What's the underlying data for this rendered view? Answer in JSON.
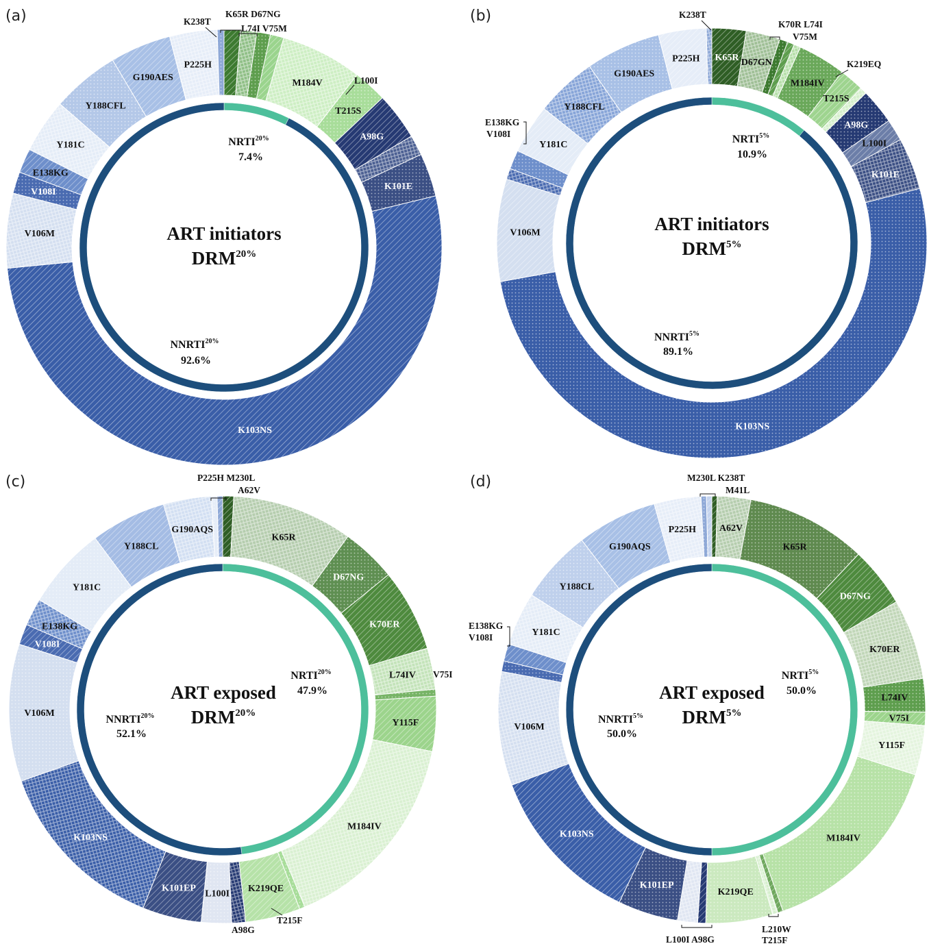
{
  "chart_data": [
    {
      "type": "donut",
      "panel": "(a)",
      "title_line1": "ART initiators",
      "title_line2": "DRM",
      "title_sup": "20%",
      "inner": [
        {
          "name": "NRTI",
          "sup": "20%",
          "value_label": "7.4%",
          "value": 7.4
        },
        {
          "name": "NNRTI",
          "sup": "20%",
          "value_label": "92.6%",
          "value": 92.6
        }
      ],
      "outer": [
        {
          "label": "K65R",
          "value": 1.2,
          "color": "#3d7a30",
          "label_shown": false
        },
        {
          "label": "D67NG",
          "value": 1.2,
          "color": "#8fbf86",
          "label_shown": false
        },
        {
          "label": "L74I",
          "value": 1.0,
          "color": "#5e9e4e",
          "label_shown": false
        },
        {
          "label": "V75M",
          "value": 1.0,
          "color": "#9ad48d",
          "label_shown": false
        },
        {
          "label": "M184V",
          "value": 6.0,
          "color": "#cdeec3",
          "label_shown": true
        },
        {
          "label": "T215S",
          "value": 2.5,
          "color": "#a8dd9a",
          "label_shown": true
        },
        {
          "label": "A98G",
          "value": 3.5,
          "color": "#263a73",
          "label_shown": true,
          "text_color": "#ffffff"
        },
        {
          "label": "L100I",
          "value": 1.5,
          "color": "#4b5f92",
          "label_shown": false
        },
        {
          "label": "K101E",
          "value": 3.2,
          "color": "#3b4f84",
          "label_shown": true,
          "text_color": "#ffffff"
        },
        {
          "label": "K103NS",
          "value": 52.0,
          "color": "#3a5ea8",
          "label_shown": true,
          "text_color": "#ffffff"
        },
        {
          "label": "V106M",
          "value": 5.5,
          "color": "#d4dff0",
          "label_shown": true
        },
        {
          "label": "V108I",
          "value": 1.6,
          "color": "#4a6bb1",
          "label_shown": true,
          "text_color": "#ffffff"
        },
        {
          "label": "E138KG",
          "value": 1.8,
          "color": "#6e8fcb",
          "label_shown": true
        },
        {
          "label": "Y181C",
          "value": 4.0,
          "color": "#e4ecf7",
          "label_shown": true
        },
        {
          "label": "Y188CFL",
          "value": 5.0,
          "color": "#b4c8e8",
          "label_shown": true
        },
        {
          "label": "G190AES",
          "value": 4.5,
          "color": "#a8c0e6",
          "label_shown": true
        },
        {
          "label": "P225H",
          "value": 3.5,
          "color": "#e6edf8",
          "label_shown": true
        },
        {
          "label": "K238T",
          "value": 0.5,
          "color": "#8fa9d7",
          "label_shown": false
        }
      ],
      "external_labels": [
        "K238T",
        "K65R D67NG",
        "L74I V75M",
        "L100I"
      ]
    },
    {
      "type": "donut",
      "panel": "(b)",
      "title_line1": "ART initiators",
      "title_line2": "DRM",
      "title_sup": "5%",
      "inner": [
        {
          "name": "NRTI",
          "sup": "5%",
          "value_label": "10.9%",
          "value": 10.9
        },
        {
          "name": "NNRTI",
          "sup": "5%",
          "value_label": "89.1%",
          "value": 89.1
        }
      ],
      "outer": [
        {
          "label": "K65R",
          "value": 2.5,
          "color": "#2f5e25",
          "label_shown": true,
          "text_color": "#ffffff"
        },
        {
          "label": "D67GN",
          "value": 2.5,
          "color": "#9fbf96",
          "label_shown": true
        },
        {
          "label": "K70R",
          "value": 0.6,
          "color": "#3d7a30",
          "label_shown": false
        },
        {
          "label": "L74I",
          "value": 0.5,
          "color": "#5e9e4e",
          "label_shown": false
        },
        {
          "label": "V75M",
          "value": 0.5,
          "color": "#b6dfa9",
          "label_shown": false
        },
        {
          "label": "M184IV",
          "value": 3.5,
          "color": "#6aa85a",
          "label_shown": true
        },
        {
          "label": "T215S",
          "value": 1.8,
          "color": "#9ed48f",
          "label_shown": true
        },
        {
          "label": "K219EQ",
          "value": 0.5,
          "color": "#d4efcb",
          "label_shown": false
        },
        {
          "label": "A98G",
          "value": 2.6,
          "color": "#263a73",
          "label_shown": true,
          "text_color": "#ffffff"
        },
        {
          "label": "L100I",
          "value": 1.6,
          "color": "#6c7ea8",
          "label_shown": true
        },
        {
          "label": "K101E",
          "value": 3.8,
          "color": "#3b4f84",
          "label_shown": true,
          "text_color": "#ffffff"
        },
        {
          "label": "K103NS",
          "value": 50.0,
          "color": "#3a5ea8",
          "label_shown": true,
          "text_color": "#ffffff"
        },
        {
          "label": "V106M",
          "value": 7.5,
          "color": "#d4dff0",
          "label_shown": true
        },
        {
          "label": "V108I",
          "value": 0.8,
          "color": "#4a6bb1",
          "label_shown": false
        },
        {
          "label": "E138KG",
          "value": 1.4,
          "color": "#6e8fcb",
          "label_shown": false
        },
        {
          "label": "Y181C",
          "value": 3.6,
          "color": "#e4ecf7",
          "label_shown": true
        },
        {
          "label": "Y188CFL",
          "value": 4.5,
          "color": "#86a4d8",
          "label_shown": true
        },
        {
          "label": "G190AES",
          "value": 5.5,
          "color": "#a8c0e6",
          "label_shown": true
        },
        {
          "label": "P225H",
          "value": 3.5,
          "color": "#e6edf8",
          "label_shown": true
        },
        {
          "label": "K238T",
          "value": 0.4,
          "color": "#8fa9d7",
          "label_shown": false
        }
      ],
      "external_labels": [
        "K238T",
        "K70R L74I",
        "V75M",
        "K219EQ",
        "E138KG",
        "V108I"
      ]
    },
    {
      "type": "donut",
      "panel": "(c)",
      "title_line1": "ART exposed",
      "title_line2": "DRM",
      "title_sup": "20%",
      "inner": [
        {
          "name": "NRTI",
          "sup": "20%",
          "value_label": "47.9%",
          "value": 47.9
        },
        {
          "name": "NNRTI",
          "sup": "20%",
          "value_label": "52.1%",
          "value": 52.1
        }
      ],
      "outer": [
        {
          "label": "A62V",
          "value": 0.8,
          "color": "#2f5e25",
          "label_shown": false
        },
        {
          "label": "K65R",
          "value": 8.8,
          "color": "#b5cdae",
          "label_shown": true
        },
        {
          "label": "D67NG",
          "value": 4.0,
          "color": "#5f8f52",
          "label_shown": true,
          "text_color": "#ffffff"
        },
        {
          "label": "K70ER",
          "value": 6.0,
          "color": "#4e8a3e",
          "label_shown": true,
          "text_color": "#ffffff"
        },
        {
          "label": "L74IV",
          "value": 3.0,
          "color": "#c3e3b9",
          "label_shown": true
        },
        {
          "label": "V75I",
          "value": 0.5,
          "color": "#77b466",
          "label_shown": false
        },
        {
          "label": "Y115F",
          "value": 4.0,
          "color": "#9cd48c",
          "label_shown": true
        },
        {
          "label": "M184IV",
          "value": 15.0,
          "color": "#d9f0d1",
          "label_shown": true
        },
        {
          "label": "T215F",
          "value": 0.4,
          "color": "#a8dd9a",
          "label_shown": false
        },
        {
          "label": "K219QE",
          "value": 4.0,
          "color": "#b6e2a8",
          "label_shown": true
        },
        {
          "label": "A98G",
          "value": 1.0,
          "color": "#263a73",
          "label_shown": false
        },
        {
          "label": "L100I",
          "value": 2.2,
          "color": "#e0e6f2",
          "label_shown": true
        },
        {
          "label": "K101EP",
          "value": 4.3,
          "color": "#3b4f84",
          "label_shown": true,
          "text_color": "#ffffff"
        },
        {
          "label": "K103NS",
          "value": 13.0,
          "color": "#3a5ea8",
          "label_shown": true,
          "text_color": "#ffffff"
        },
        {
          "label": "V106M",
          "value": 10.0,
          "color": "#d4dff0",
          "label_shown": true
        },
        {
          "label": "V108I",
          "value": 1.5,
          "color": "#4a6bb1",
          "label_shown": true,
          "text_color": "#ffffff"
        },
        {
          "label": "E138KG",
          "value": 2.0,
          "color": "#6e8fcb",
          "label_shown": true
        },
        {
          "label": "Y181C",
          "value": 6.0,
          "color": "#e4ecf7",
          "label_shown": true
        },
        {
          "label": "Y188CL",
          "value": 5.5,
          "color": "#a4bce4",
          "label_shown": true
        },
        {
          "label": "G190AQS",
          "value": 3.5,
          "color": "#d2dff2",
          "label_shown": true
        },
        {
          "label": "P225H",
          "value": 0.4,
          "color": "#e6edf8",
          "label_shown": false
        },
        {
          "label": "M230L",
          "value": 0.4,
          "color": "#8fa9d7",
          "label_shown": false
        }
      ],
      "external_labels": [
        "P225H M230L",
        "A62V",
        "V75I",
        "T215F",
        "A98G"
      ]
    },
    {
      "type": "donut",
      "panel": "(d)",
      "title_line1": "ART exposed",
      "title_line2": "DRM",
      "title_sup": "5%",
      "inner": [
        {
          "name": "NRTI",
          "sup": "5%",
          "value_label": "50.0%",
          "value": 50.0
        },
        {
          "name": "NNRTI",
          "sup": "5%",
          "value_label": "50.0%",
          "value": 50.0
        }
      ],
      "outer": [
        {
          "label": "M41L",
          "value": 0.4,
          "color": "#2f5e25",
          "label_shown": false
        },
        {
          "label": "A62V",
          "value": 2.5,
          "color": "#b5cdae",
          "label_shown": true
        },
        {
          "label": "K65R",
          "value": 9.0,
          "color": "#5f8a4f",
          "label_shown": true
        },
        {
          "label": "D67NG",
          "value": 4.5,
          "color": "#4e8a3e",
          "label_shown": true,
          "text_color": "#ffffff"
        },
        {
          "label": "K70ER",
          "value": 6.0,
          "color": "#c0d6b7",
          "label_shown": true
        },
        {
          "label": "L74IV",
          "value": 2.5,
          "color": "#5e9e4e",
          "label_shown": true
        },
        {
          "label": "V75I",
          "value": 1.0,
          "color": "#9cd48c",
          "label_shown": true
        },
        {
          "label": "Y115F",
          "value": 3.7,
          "color": "#e4f4de",
          "label_shown": true
        },
        {
          "label": "M184IV",
          "value": 14.5,
          "color": "#b7e2a7",
          "label_shown": true
        },
        {
          "label": "L210W",
          "value": 0.4,
          "color": "#6fa85e",
          "label_shown": false
        },
        {
          "label": "T215F",
          "value": 0.4,
          "color": "#d6efcd",
          "label_shown": false
        },
        {
          "label": "K219QE",
          "value": 5.0,
          "color": "#cbe9bf",
          "label_shown": true
        },
        {
          "label": "A98G",
          "value": 0.6,
          "color": "#263a73",
          "label_shown": false
        },
        {
          "label": "L100I",
          "value": 1.5,
          "color": "#e0e6f2",
          "label_shown": false
        },
        {
          "label": "K101EP",
          "value": 4.5,
          "color": "#3b4f84",
          "label_shown": true,
          "text_color": "#ffffff"
        },
        {
          "label": "K103NS",
          "value": 12.0,
          "color": "#3a5ea8",
          "label_shown": true,
          "text_color": "#ffffff"
        },
        {
          "label": "V106M",
          "value": 8.5,
          "color": "#d4dff0",
          "label_shown": true
        },
        {
          "label": "V108I",
          "value": 0.8,
          "color": "#4a6bb1",
          "label_shown": false
        },
        {
          "label": "E138KG",
          "value": 1.3,
          "color": "#6e8fcb",
          "label_shown": false
        },
        {
          "label": "Y181C",
          "value": 4.0,
          "color": "#e4ecf7",
          "label_shown": true
        },
        {
          "label": "Y188CL",
          "value": 5.5,
          "color": "#bfd0ec",
          "label_shown": true
        },
        {
          "label": "G190AQS",
          "value": 6.0,
          "color": "#a8c0e6",
          "label_shown": true
        },
        {
          "label": "P225H",
          "value": 3.5,
          "color": "#e6edf8",
          "label_shown": true
        },
        {
          "label": "M230L",
          "value": 0.4,
          "color": "#8fa9d7",
          "label_shown": false
        },
        {
          "label": "K238T",
          "value": 0.4,
          "color": "#c4d3ee",
          "label_shown": false
        }
      ],
      "external_labels": [
        "M230L K238T",
        "M41L",
        "E138KG",
        "V108I",
        "L210W",
        "T215F",
        "L100I A98G"
      ]
    }
  ],
  "colors": {
    "nrti_ring": "#4dbf9b",
    "nnrti_ring": "#1d4e7c"
  }
}
